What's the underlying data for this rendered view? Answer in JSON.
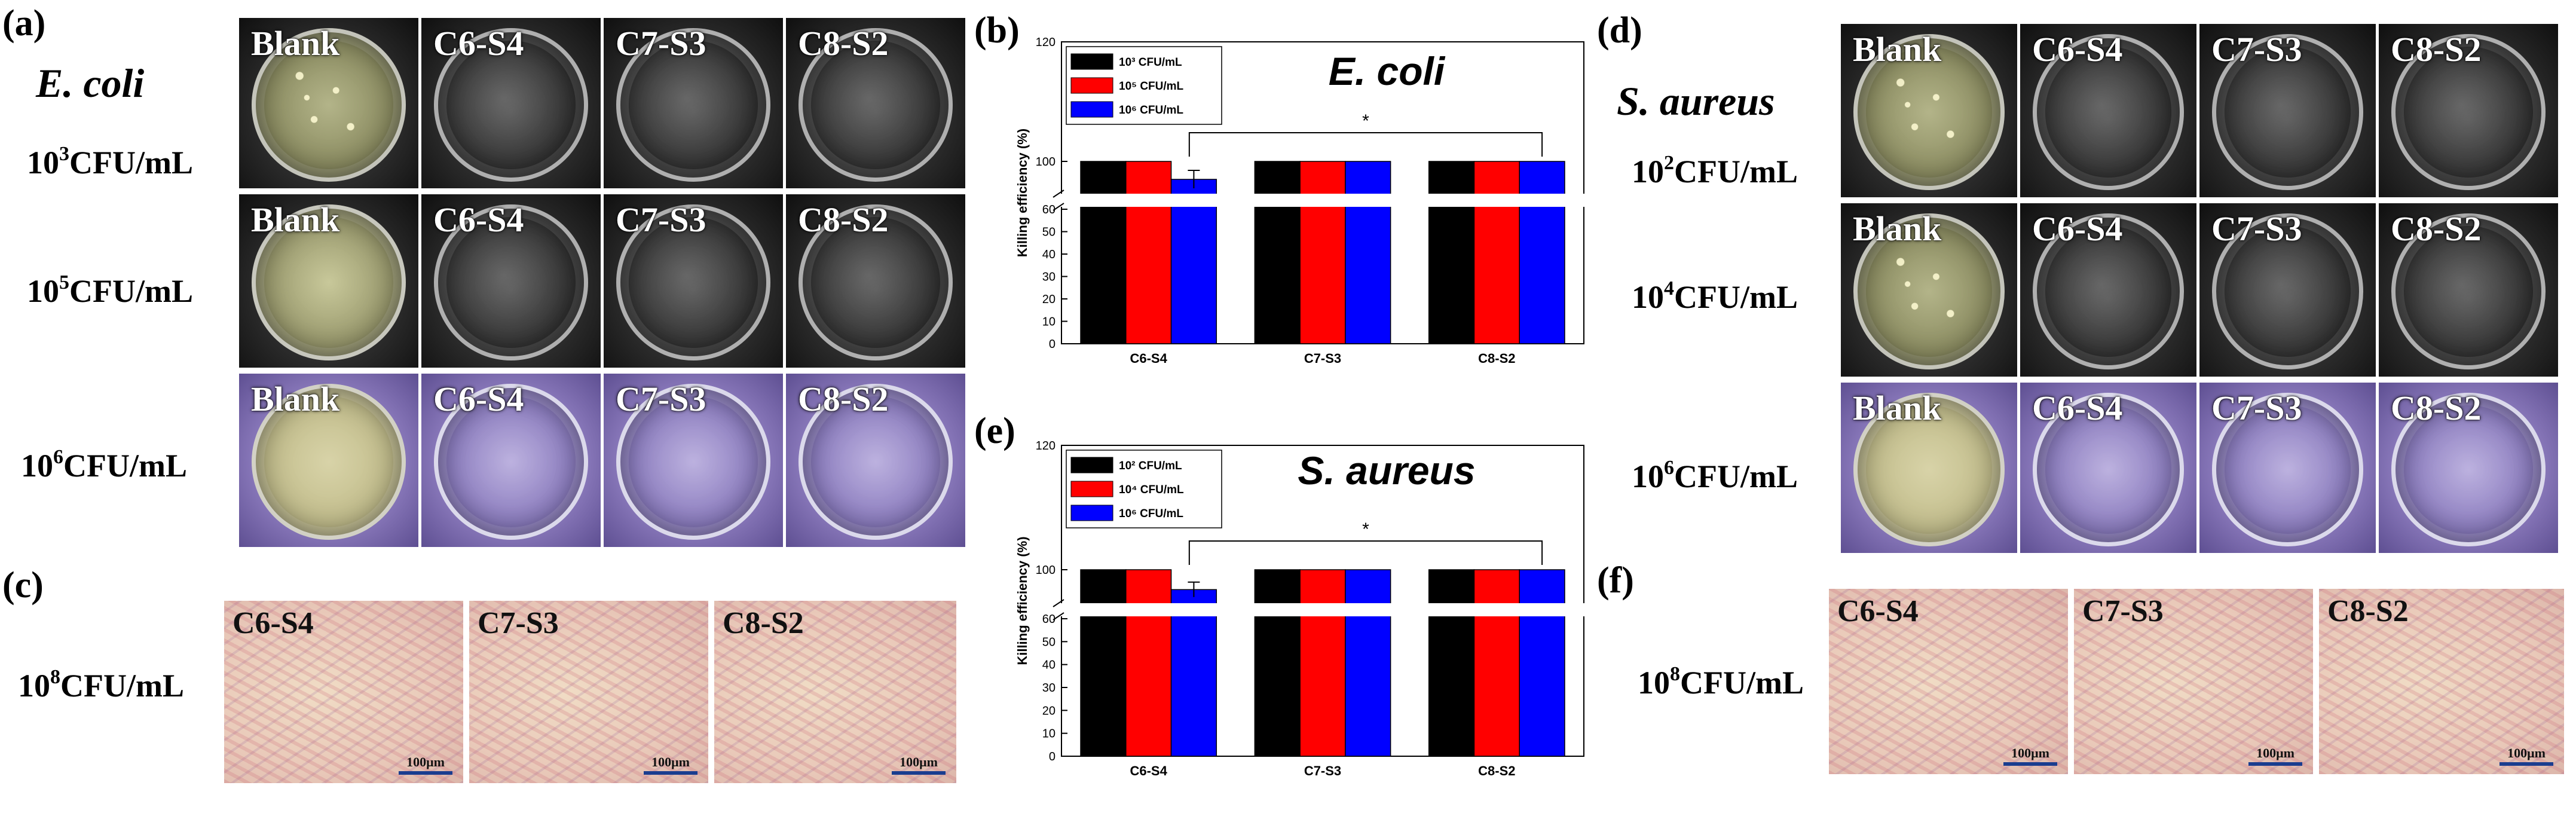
{
  "panel_labels": {
    "a": "(a)",
    "b": "(b)",
    "c": "(c)",
    "d": "(d)",
    "e": "(e)",
    "f": "(f)"
  },
  "panel_a": {
    "species": "E. coli",
    "rows": [
      {
        "base": "10",
        "exp": "3",
        "unit": "CFU/mL",
        "tiles": [
          "Blank",
          "C6-S4",
          "C7-S3",
          "C8-S2"
        ]
      },
      {
        "base": "10",
        "exp": "5",
        "unit": "CFU/mL",
        "tiles": [
          "Blank",
          "C6-S4",
          "C7-S3",
          "C8-S2"
        ]
      },
      {
        "base": "10",
        "exp": "6",
        "unit": "CFU/mL",
        "tiles": [
          "Blank",
          "C6-S4",
          "C7-S3",
          "C8-S2"
        ]
      }
    ]
  },
  "panel_c": {
    "conc": {
      "base": "10",
      "exp": "8",
      "unit": "CFU/mL"
    },
    "tiles": [
      "C6-S4",
      "C7-S3",
      "C8-S2"
    ],
    "scale": "100μm"
  },
  "panel_d": {
    "species": "S. aureus",
    "rows": [
      {
        "base": "10",
        "exp": "2",
        "unit": "CFU/mL",
        "tiles": [
          "Blank",
          "C6-S4",
          "C7-S3",
          "C8-S2"
        ]
      },
      {
        "base": "10",
        "exp": "4",
        "unit": "CFU/mL",
        "tiles": [
          "Blank",
          "C6-S4",
          "C7-S3",
          "C8-S2"
        ]
      },
      {
        "base": "10",
        "exp": "6",
        "unit": "CFU/mL",
        "tiles": [
          "Blank",
          "C6-S4",
          "C7-S3",
          "C8-S2"
        ]
      }
    ]
  },
  "panel_f": {
    "conc": {
      "base": "10",
      "exp": "8",
      "unit": "CFU/mL"
    },
    "tiles": [
      "C6-S4",
      "C7-S3",
      "C8-S2"
    ],
    "scale": "100μm"
  },
  "colors": {
    "black_series": "#000000",
    "red_series": "#ff0000",
    "blue_series": "#0000ff"
  },
  "chart_data": [
    {
      "panel": "b",
      "type": "bar",
      "title": "E. coli",
      "ylabel": "Killing efficiency (%)",
      "xlabel": "",
      "categories": [
        "C6-S4",
        "C7-S3",
        "C8-S2"
      ],
      "series": [
        {
          "name": "10³ CFU/mL",
          "color": "#000000",
          "values": [
            100,
            100,
            100
          ]
        },
        {
          "name": "10⁵ CFU/mL",
          "color": "#ff0000",
          "values": [
            100,
            100,
            100
          ]
        },
        {
          "name": "10⁶ CFU/mL",
          "color": "#0000ff",
          "values": [
            97,
            100,
            100
          ]
        }
      ],
      "error": [
        [
          0,
          0,
          0
        ],
        [
          0,
          0,
          0
        ],
        [
          1.5,
          0,
          0
        ]
      ],
      "ylim": [
        0,
        120
      ],
      "axis_break": [
        60,
        95
      ],
      "yticks": [
        0,
        10,
        20,
        30,
        40,
        50,
        60,
        100,
        120
      ],
      "significance": {
        "from": "C6-S4",
        "to": "C8-S2",
        "label": "*"
      },
      "legend_position": "top-left"
    },
    {
      "panel": "e",
      "type": "bar",
      "title": "S. aureus",
      "ylabel": "Killing efficiency (%)",
      "xlabel": "",
      "categories": [
        "C6-S4",
        "C7-S3",
        "C8-S2"
      ],
      "series": [
        {
          "name": "10² CFU/mL",
          "color": "#000000",
          "values": [
            100,
            100,
            100
          ]
        },
        {
          "name": "10⁴ CFU/mL",
          "color": "#ff0000",
          "values": [
            100,
            100,
            100
          ]
        },
        {
          "name": "10⁶ CFU/mL",
          "color": "#0000ff",
          "values": [
            96.8,
            100,
            100
          ]
        }
      ],
      "error": [
        [
          0,
          0,
          0
        ],
        [
          0,
          0,
          0
        ],
        [
          1.2,
          0,
          0
        ]
      ],
      "ylim": [
        0,
        120
      ],
      "axis_break": [
        60,
        95
      ],
      "yticks": [
        0,
        10,
        20,
        30,
        40,
        50,
        60,
        100,
        120
      ],
      "significance": {
        "from": "C6-S4",
        "to": "C8-S2",
        "label": "*"
      },
      "legend_position": "top-left"
    }
  ]
}
